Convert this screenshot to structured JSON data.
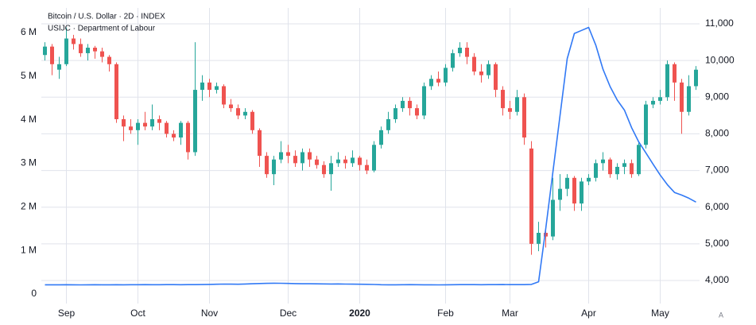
{
  "chart_data": {
    "type": "candlestick",
    "categories": [
      null,
      null,
      null,
      "Sep",
      null,
      null,
      null,
      null,
      null,
      null,
      null,
      null,
      null,
      "Oct",
      null,
      null,
      null,
      null,
      null,
      null,
      null,
      null,
      null,
      "Nov",
      null,
      null,
      null,
      null,
      null,
      null,
      null,
      null,
      null,
      null,
      "Dec",
      null,
      null,
      null,
      null,
      null,
      null,
      null,
      null,
      null,
      "2020",
      null,
      null,
      null,
      null,
      null,
      null,
      null,
      null,
      null,
      null,
      null,
      "Feb",
      null,
      null,
      null,
      null,
      null,
      null,
      null,
      null,
      "Mar",
      null,
      null,
      null,
      null,
      null,
      null,
      null,
      null,
      null,
      null,
      "Apr",
      null,
      null,
      null,
      null,
      null,
      null,
      null,
      null,
      null,
      "May",
      null,
      null,
      null,
      null,
      null
    ],
    "series": [
      {
        "name": "Bitcoin / U.S. Dollar · 2D · INDEX",
        "type": "candlestick",
        "axis": "y2",
        "up_color": "#26a69a",
        "down_color": "#ef5350",
        "open": [
          10150,
          10380,
          9750,
          9900,
          10600,
          10450,
          10200,
          10350,
          10250,
          10100,
          9900,
          8400,
          8200,
          8100,
          8300,
          8200,
          8400,
          8300,
          8000,
          7900,
          8300,
          7500,
          9200,
          9400,
          9200,
          9300,
          8800,
          8700,
          8500,
          8600,
          8100,
          7400,
          6900,
          7300,
          7500,
          7400,
          7200,
          7500,
          7300,
          7150,
          6900,
          7200,
          7300,
          7200,
          7350,
          7150,
          7000,
          7700,
          8100,
          8400,
          8700,
          8900,
          8700,
          8500,
          9300,
          9500,
          9400,
          9800,
          10200,
          10350,
          10100,
          9700,
          9600,
          9900,
          9200,
          8700,
          8600,
          9000,
          7600,
          5000,
          5300,
          5200,
          6200,
          6500,
          6800,
          6100,
          6700,
          6800,
          7200,
          7300,
          6900,
          7100,
          7200,
          6900,
          7700,
          8800,
          8900,
          9000,
          9900,
          9400,
          8600,
          9300
        ],
        "high": [
          10500,
          10450,
          10100,
          10900,
          10700,
          10600,
          10450,
          10400,
          10350,
          10150,
          9950,
          8500,
          8400,
          8400,
          8600,
          8800,
          8500,
          8350,
          8100,
          8350,
          8350,
          10500,
          9600,
          9500,
          9400,
          9350,
          8950,
          8800,
          8700,
          8650,
          8150,
          7500,
          7400,
          7800,
          7700,
          7550,
          7600,
          7600,
          7400,
          7250,
          7400,
          7500,
          7400,
          7550,
          7400,
          7300,
          7800,
          8200,
          8600,
          8800,
          9000,
          9000,
          8800,
          9400,
          9600,
          9700,
          9900,
          10300,
          10500,
          10500,
          10200,
          9900,
          10000,
          9950,
          9300,
          8900,
          9200,
          9100,
          7800,
          5600,
          5400,
          6800,
          6900,
          6900,
          6850,
          6800,
          6900,
          7300,
          7500,
          7350,
          7200,
          7300,
          7300,
          7800,
          8900,
          9000,
          9200,
          10000,
          9950,
          9500,
          9600,
          9850
        ],
        "low": [
          10000,
          9600,
          9500,
          9850,
          10300,
          10100,
          10000,
          10050,
          9950,
          9700,
          8300,
          7800,
          8000,
          7700,
          8100,
          8100,
          8100,
          7900,
          7800,
          7700,
          7300,
          7400,
          8900,
          9000,
          9100,
          8700,
          8600,
          8400,
          8400,
          8000,
          7100,
          6800,
          6600,
          7200,
          7200,
          7100,
          7000,
          7100,
          7050,
          6800,
          6450,
          7100,
          7050,
          7100,
          7000,
          6900,
          6950,
          7600,
          8000,
          8300,
          8600,
          8500,
          8400,
          8400,
          9200,
          9300,
          9300,
          9700,
          10100,
          9900,
          9600,
          9400,
          9500,
          9000,
          8500,
          8400,
          8500,
          7700,
          4700,
          4800,
          4900,
          5100,
          5900,
          6300,
          5900,
          5900,
          6600,
          6700,
          7000,
          6800,
          6750,
          6900,
          6800,
          6850,
          7600,
          8700,
          8800,
          8900,
          8900,
          8000,
          8500,
          9200
        ],
        "close": [
          10380,
          9900,
          9900,
          10600,
          10450,
          10200,
          10350,
          10250,
          10100,
          9900,
          8400,
          8200,
          8100,
          8300,
          8200,
          8400,
          8300,
          8000,
          7900,
          8300,
          7500,
          9200,
          9400,
          9200,
          9300,
          8800,
          8700,
          8500,
          8600,
          8100,
          7400,
          6900,
          7300,
          7500,
          7400,
          7200,
          7500,
          7300,
          7150,
          6900,
          7200,
          7300,
          7200,
          7350,
          7150,
          7000,
          7700,
          8100,
          8400,
          8700,
          8900,
          8700,
          8500,
          9300,
          9500,
          9400,
          9800,
          10200,
          10350,
          10100,
          9700,
          9600,
          9900,
          9200,
          8700,
          8600,
          9000,
          7900,
          5000,
          5300,
          5200,
          6200,
          6500,
          6800,
          6100,
          6700,
          6800,
          7200,
          7300,
          6900,
          7100,
          7200,
          6900,
          7700,
          8800,
          8900,
          9000,
          9900,
          9400,
          8600,
          9300,
          9750
        ]
      },
      {
        "name": "USIJC · Department of Labour",
        "type": "line",
        "axis": "y",
        "color": "#3179f5",
        "values": [
          212000,
          212000,
          211000,
          213000,
          212000,
          210000,
          211000,
          213000,
          212000,
          211000,
          213000,
          212000,
          214000,
          213000,
          215000,
          214000,
          213000,
          215000,
          216000,
          214000,
          215000,
          216000,
          217000,
          220000,
          225000,
          228000,
          226000,
          224000,
          230000,
          235000,
          240000,
          245000,
          248000,
          246000,
          242000,
          238000,
          236000,
          235000,
          233000,
          232000,
          230000,
          231000,
          228000,
          226000,
          225000,
          222000,
          218000,
          214000,
          211000,
          212000,
          213000,
          215000,
          214000,
          212000,
          211000,
          210000,
          212000,
          214000,
          215000,
          216000,
          215000,
          214000,
          215000,
          216000,
          217000,
          216000,
          215000,
          216000,
          220000,
          280000,
          1500000,
          2800000,
          4100000,
          5400000,
          5980000,
          6050000,
          6120000,
          5710000,
          5160000,
          4760000,
          4450000,
          4220000,
          3820000,
          3490000,
          3240000,
          2980000,
          2730000,
          2510000,
          2330000,
          2270000,
          2200000,
          2110000
        ]
      }
    ],
    "ylim": [
      -219000,
      6566000
    ],
    "yticks": [
      0,
      {
        "value": 1000000,
        "label": "1 M"
      },
      {
        "value": 2000000,
        "label": "2 M"
      },
      {
        "value": 3000000,
        "label": "3 M"
      },
      {
        "value": 4000000,
        "label": "4 M"
      },
      {
        "value": 5000000,
        "label": "5 M"
      },
      {
        "value": 6000000,
        "label": "6 M"
      }
    ],
    "y2lim": [
      3371,
      11434
    ],
    "y2ticks": [
      {
        "value": 4000,
        "label": "4,000"
      },
      {
        "value": 5000,
        "label": "5,000"
      },
      {
        "value": 6000,
        "label": "6,000"
      },
      {
        "value": 7000,
        "label": "7,000"
      },
      {
        "value": 8000,
        "label": "8,000"
      },
      {
        "value": 9000,
        "label": "9,000"
      },
      {
        "value": 10000,
        "label": "10,000"
      },
      {
        "value": 11000,
        "label": "11,000"
      }
    ],
    "grid": true,
    "auto_scale": "A"
  }
}
